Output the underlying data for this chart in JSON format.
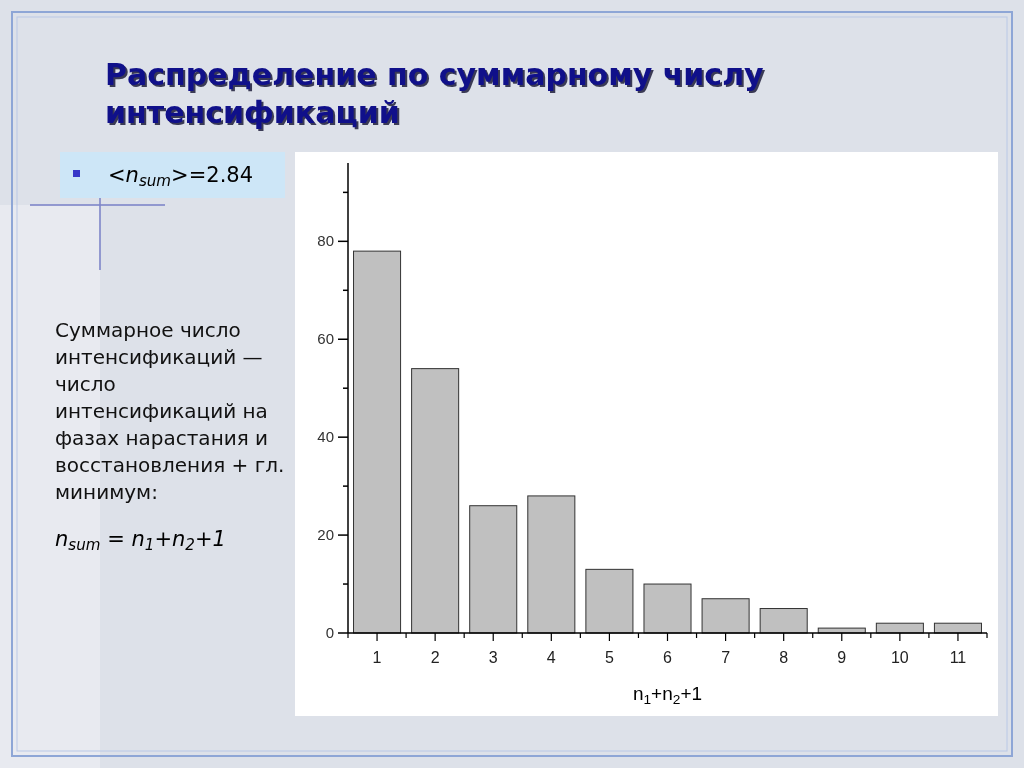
{
  "chart_data": {
    "type": "bar",
    "title": "Распределение по суммарному числу интенсификаций",
    "xlabel": "n$_{1}$+n$_{2}$+1",
    "categories": [
      "1",
      "2",
      "3",
      "4",
      "5",
      "6",
      "7",
      "8",
      "9",
      "10",
      "11"
    ],
    "values": [
      78,
      54,
      26,
      28,
      13,
      10,
      7,
      5,
      1,
      2,
      2
    ],
    "color": "#c0c0c0",
    "ylim": [
      0,
      96
    ],
    "yticks": [
      0,
      {
        "value": 10,
        "label": null
      },
      20,
      {
        "value": 30,
        "label": null
      },
      40,
      {
        "value": 50,
        "label": null
      },
      60,
      {
        "value": 70,
        "label": null
      },
      80,
      {
        "value": 90,
        "label": null
      }
    ],
    "annotations": [
      "<n$_{sum}$>=2.84",
      "Суммарное число интенсификаций — число интенсификаций на фазах нарастания и восстановления + гл. минимум:",
      "n$_{sum}$ = n$_{1}$+n$_{2}$+1"
    ]
  }
}
